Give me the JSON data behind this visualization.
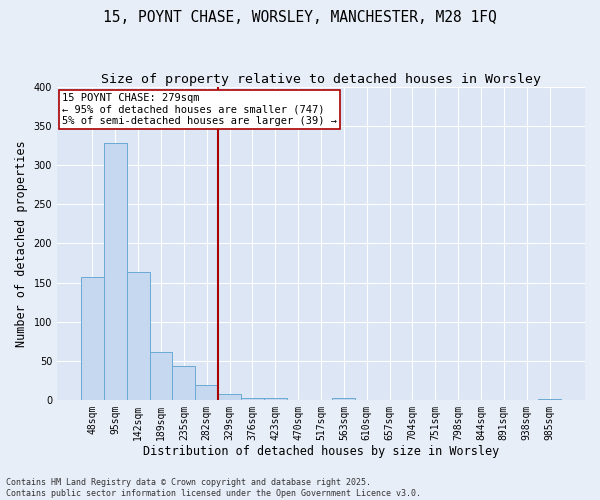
{
  "title_line1": "15, POYNT CHASE, WORSLEY, MANCHESTER, M28 1FQ",
  "title_line2": "Size of property relative to detached houses in Worsley",
  "xlabel": "Distribution of detached houses by size in Worsley",
  "ylabel": "Number of detached properties",
  "bin_labels": [
    "48sqm",
    "95sqm",
    "142sqm",
    "189sqm",
    "235sqm",
    "282sqm",
    "329sqm",
    "376sqm",
    "423sqm",
    "470sqm",
    "517sqm",
    "563sqm",
    "610sqm",
    "657sqm",
    "704sqm",
    "751sqm",
    "798sqm",
    "844sqm",
    "891sqm",
    "938sqm",
    "985sqm"
  ],
  "bar_values": [
    157,
    328,
    163,
    62,
    44,
    20,
    8,
    3,
    3,
    0,
    0,
    3,
    0,
    0,
    0,
    0,
    0,
    0,
    0,
    0,
    2
  ],
  "bar_color": "#c5d8f0",
  "bar_edge_color": "#6aaad4",
  "vline_x_index": 5,
  "vline_color": "#aa0000",
  "annotation_text": "15 POYNT CHASE: 279sqm\n← 95% of detached houses are smaller (747)\n5% of semi-detached houses are larger (39) →",
  "annotation_box_color": "#ffffff",
  "annotation_box_edge_color": "#aa0000",
  "fig_background_color": "#e8eef8",
  "ax_background_color": "#dce6f5",
  "grid_color": "#ffffff",
  "ylim": [
    0,
    400
  ],
  "yticks": [
    0,
    50,
    100,
    150,
    200,
    250,
    300,
    350,
    400
  ],
  "footer_line1": "Contains HM Land Registry data © Crown copyright and database right 2025.",
  "footer_line2": "Contains public sector information licensed under the Open Government Licence v3.0.",
  "title_fontsize": 10.5,
  "subtitle_fontsize": 9.5,
  "axis_label_fontsize": 8.5,
  "tick_fontsize": 7,
  "annotation_fontsize": 7.5,
  "footer_fontsize": 6
}
